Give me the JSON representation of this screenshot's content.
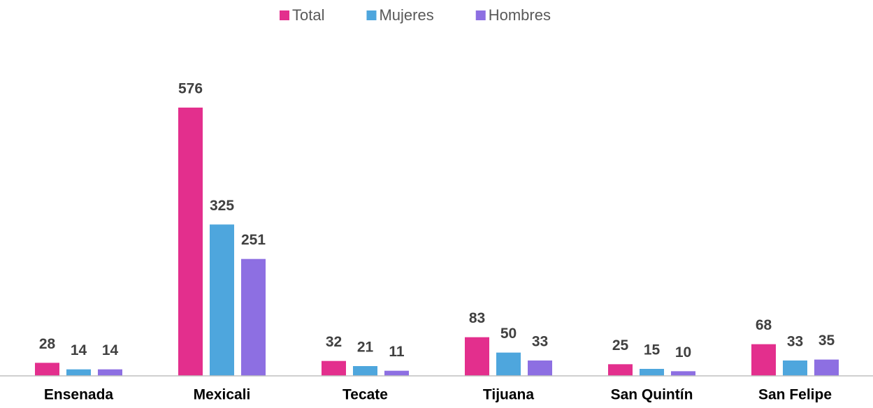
{
  "chart_data": {
    "type": "bar",
    "categories": [
      "Ensenada",
      "Mexicali",
      "Tecate",
      "Tijuana",
      "San Quintín",
      "San Felipe"
    ],
    "series": [
      {
        "name": "Total",
        "color": "#e32f8d",
        "values": [
          28,
          576,
          32,
          83,
          25,
          68
        ]
      },
      {
        "name": "Mujeres",
        "color": "#4ea6dd",
        "values": [
          14,
          325,
          21,
          50,
          15,
          33
        ]
      },
      {
        "name": "Hombres",
        "color": "#8d6fe2",
        "values": [
          14,
          251,
          11,
          33,
          10,
          35
        ]
      }
    ],
    "legend": "top"
  }
}
